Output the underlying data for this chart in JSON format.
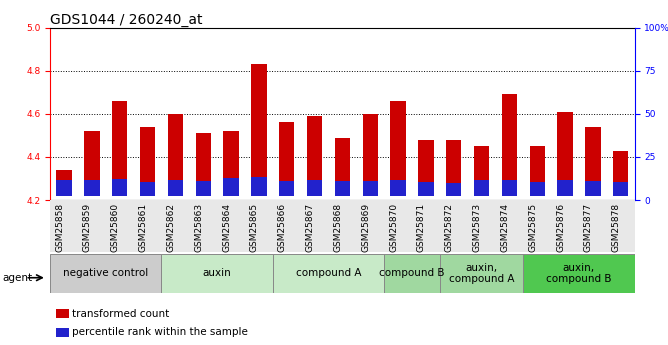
{
  "title": "GDS1044 / 260240_at",
  "samples": [
    "GSM25858",
    "GSM25859",
    "GSM25860",
    "GSM25861",
    "GSM25862",
    "GSM25863",
    "GSM25864",
    "GSM25865",
    "GSM25866",
    "GSM25867",
    "GSM25868",
    "GSM25869",
    "GSM25870",
    "GSM25871",
    "GSM25872",
    "GSM25873",
    "GSM25874",
    "GSM25875",
    "GSM25876",
    "GSM25877",
    "GSM25878"
  ],
  "transformed_count": [
    4.34,
    4.52,
    4.66,
    4.54,
    4.6,
    4.51,
    4.52,
    4.83,
    4.56,
    4.59,
    4.49,
    4.6,
    4.66,
    4.48,
    4.48,
    4.45,
    4.69,
    4.45,
    4.61,
    4.54,
    4.43
  ],
  "percentile_base": 4.22,
  "percentile_top": [
    4.295,
    4.295,
    4.3,
    4.285,
    4.295,
    4.29,
    4.302,
    4.308,
    4.29,
    4.295,
    4.29,
    4.29,
    4.295,
    4.285,
    4.278,
    4.295,
    4.295,
    4.285,
    4.295,
    4.29,
    4.285
  ],
  "ylim_left": [
    4.2,
    5.0
  ],
  "ylim_right": [
    0,
    100
  ],
  "yticks_left": [
    4.2,
    4.4,
    4.6,
    4.8,
    5.0
  ],
  "yticks_right": [
    0,
    25,
    50,
    75,
    100
  ],
  "ytick_labels_right": [
    "0",
    "25",
    "50",
    "75",
    "100%"
  ],
  "bar_color": "#cc0000",
  "percentile_color": "#2222cc",
  "groups": [
    {
      "label": "negative control",
      "start": 0,
      "end": 4,
      "color": "#cccccc"
    },
    {
      "label": "auxin",
      "start": 4,
      "end": 8,
      "color": "#c8eac8"
    },
    {
      "label": "compound A",
      "start": 8,
      "end": 12,
      "color": "#c8eac8"
    },
    {
      "label": "compound B",
      "start": 12,
      "end": 14,
      "color": "#a0d8a0"
    },
    {
      "label": "auxin,\ncompound A",
      "start": 14,
      "end": 17,
      "color": "#a0d8a0"
    },
    {
      "label": "auxin,\ncompound B",
      "start": 17,
      "end": 21,
      "color": "#50c850"
    }
  ],
  "bar_width": 0.55,
  "title_fontsize": 10,
  "tick_fontsize": 6.5,
  "group_label_fontsize": 7.5
}
